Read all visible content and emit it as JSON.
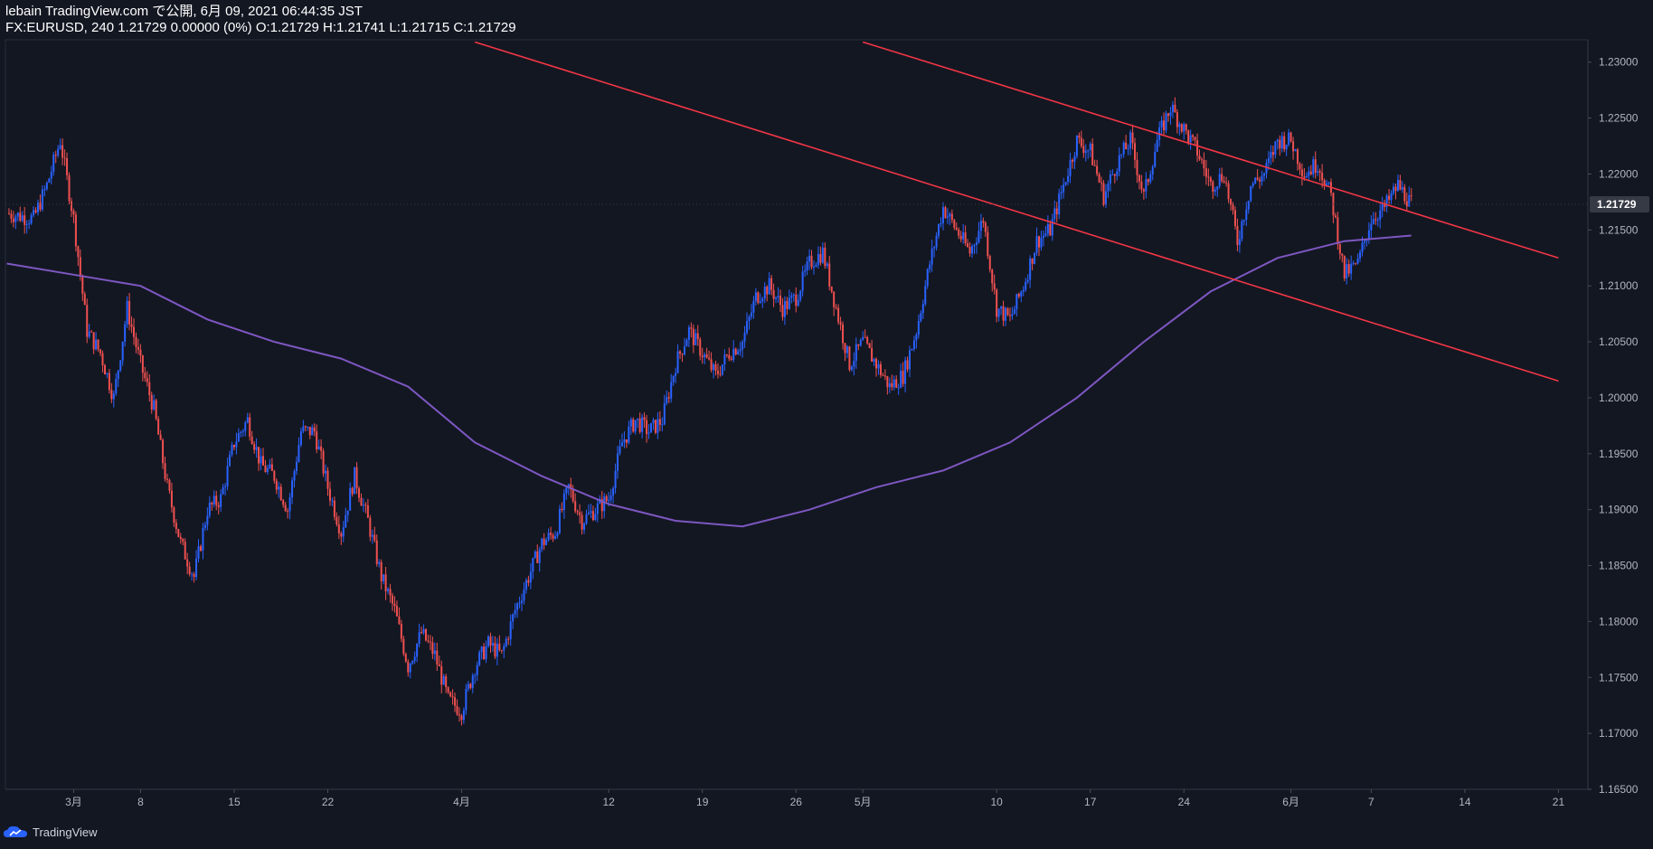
{
  "header": {
    "line1": "lebain TradingView.com で公開, 6月 09, 2021 06:44:35 JST",
    "line2": "FX:EURUSD, 240 1.21729 0.00000 (0%) O:1.21729 H:1.21741 L:1.21715 C:1.21729"
  },
  "footer": {
    "brand": "TradingView"
  },
  "colors": {
    "background": "#131722",
    "up": "#2962ff",
    "down": "#f05050",
    "ma": "#7e57c2",
    "trendline": "#f23645",
    "axis_text": "#b2b5be",
    "price_label_bg": "#363a45"
  },
  "chart_data": {
    "type": "candlestick",
    "symbol": "FX:EURUSD",
    "interval": "240",
    "ylim": [
      1.165,
      1.232
    ],
    "y_ticks": [
      "1.23000",
      "1.22500",
      "1.22000",
      "1.21500",
      "1.21000",
      "1.20500",
      "1.20000",
      "1.19500",
      "1.19000",
      "1.18500",
      "1.18000",
      "1.17500",
      "1.17000",
      "1.16500"
    ],
    "x_ticks": [
      {
        "label": "3月",
        "day": 0
      },
      {
        "label": "8",
        "day": 5
      },
      {
        "label": "15",
        "day": 12
      },
      {
        "label": "22",
        "day": 19
      },
      {
        "label": "4月",
        "day": 29
      },
      {
        "label": "12",
        "day": 40
      },
      {
        "label": "19",
        "day": 47
      },
      {
        "label": "26",
        "day": 54
      },
      {
        "label": "5月",
        "day": 59
      },
      {
        "label": "10",
        "day": 69
      },
      {
        "label": "17",
        "day": 76
      },
      {
        "label": "24",
        "day": 83
      },
      {
        "label": "6月",
        "day": 91
      },
      {
        "label": "7",
        "day": 97
      },
      {
        "label": "14",
        "day": 104
      },
      {
        "label": "21",
        "day": 111
      }
    ],
    "last_price": "1.21729",
    "price_path": [
      [
        -5,
        1.2165
      ],
      [
        -3,
        1.216
      ],
      [
        -2,
        1.219
      ],
      [
        -1,
        1.223
      ],
      [
        0,
        1.216
      ],
      [
        1,
        1.206
      ],
      [
        2,
        1.204
      ],
      [
        3,
        1.2
      ],
      [
        4,
        1.208
      ],
      [
        5,
        1.203
      ],
      [
        6,
        1.199
      ],
      [
        7,
        1.192
      ],
      [
        8,
        1.187
      ],
      [
        9,
        1.184
      ],
      [
        10,
        1.19
      ],
      [
        11,
        1.191
      ],
      [
        12,
        1.196
      ],
      [
        13,
        1.198
      ],
      [
        14,
        1.194
      ],
      [
        15,
        1.193
      ],
      [
        16,
        1.19
      ],
      [
        17,
        1.197
      ],
      [
        18,
        1.197
      ],
      [
        19,
        1.192
      ],
      [
        20,
        1.188
      ],
      [
        21,
        1.193
      ],
      [
        22,
        1.189
      ],
      [
        23,
        1.184
      ],
      [
        24,
        1.181
      ],
      [
        25,
        1.176
      ],
      [
        26,
        1.179
      ],
      [
        27,
        1.177
      ],
      [
        28,
        1.173
      ],
      [
        29,
        1.172
      ],
      [
        30,
        1.176
      ],
      [
        31,
        1.178
      ],
      [
        32,
        1.177
      ],
      [
        33,
        1.181
      ],
      [
        34,
        1.184
      ],
      [
        35,
        1.187
      ],
      [
        36,
        1.188
      ],
      [
        37,
        1.192
      ],
      [
        38,
        1.189
      ],
      [
        39,
        1.19
      ],
      [
        40,
        1.191
      ],
      [
        41,
        1.196
      ],
      [
        42,
        1.198
      ],
      [
        43,
        1.197
      ],
      [
        44,
        1.198
      ],
      [
        45,
        1.203
      ],
      [
        46,
        1.206
      ],
      [
        47,
        1.204
      ],
      [
        48,
        1.202
      ],
      [
        49,
        1.204
      ],
      [
        50,
        1.205
      ],
      [
        51,
        1.209
      ],
      [
        52,
        1.21
      ],
      [
        53,
        1.208
      ],
      [
        54,
        1.209
      ],
      [
        55,
        1.212
      ],
      [
        56,
        1.213
      ],
      [
        57,
        1.208
      ],
      [
        58,
        1.203
      ],
      [
        59,
        1.205
      ],
      [
        60,
        1.203
      ],
      [
        61,
        1.201
      ],
      [
        62,
        1.202
      ],
      [
        63,
        1.206
      ],
      [
        64,
        1.212
      ],
      [
        65,
        1.217
      ],
      [
        66,
        1.215
      ],
      [
        67,
        1.213
      ],
      [
        68,
        1.216
      ],
      [
        69,
        1.208
      ],
      [
        70,
        1.207
      ],
      [
        71,
        1.21
      ],
      [
        72,
        1.214
      ],
      [
        73,
        1.215
      ],
      [
        74,
        1.219
      ],
      [
        75,
        1.223
      ],
      [
        76,
        1.222
      ],
      [
        77,
        1.218
      ],
      [
        78,
        1.221
      ],
      [
        79,
        1.223
      ],
      [
        80,
        1.218
      ],
      [
        81,
        1.223
      ],
      [
        82,
        1.226
      ],
      [
        83,
        1.224
      ],
      [
        84,
        1.222
      ],
      [
        85,
        1.219
      ],
      [
        86,
        1.22
      ],
      [
        87,
        1.214
      ],
      [
        88,
        1.219
      ],
      [
        89,
        1.22
      ],
      [
        90,
        1.223
      ],
      [
        91,
        1.223
      ],
      [
        92,
        1.22
      ],
      [
        93,
        1.221
      ],
      [
        94,
        1.218
      ],
      [
        95,
        1.211
      ],
      [
        96,
        1.212
      ],
      [
        97,
        1.216
      ],
      [
        98,
        1.217
      ],
      [
        99,
        1.219
      ],
      [
        100,
        1.2173
      ]
    ],
    "moving_average": [
      [
        -5,
        1.212
      ],
      [
        0,
        1.211
      ],
      [
        5,
        1.21
      ],
      [
        10,
        1.207
      ],
      [
        15,
        1.205
      ],
      [
        20,
        1.2035
      ],
      [
        25,
        1.201
      ],
      [
        30,
        1.196
      ],
      [
        35,
        1.193
      ],
      [
        40,
        1.1905
      ],
      [
        45,
        1.189
      ],
      [
        50,
        1.1885
      ],
      [
        55,
        1.19
      ],
      [
        60,
        1.192
      ],
      [
        65,
        1.1935
      ],
      [
        70,
        1.196
      ],
      [
        75,
        1.2
      ],
      [
        80,
        1.205
      ],
      [
        85,
        1.2095
      ],
      [
        90,
        1.2125
      ],
      [
        95,
        1.214
      ],
      [
        100,
        1.2145
      ]
    ],
    "trendlines": [
      {
        "name": "channel-upper",
        "from": [
          59,
          1.2318
        ],
        "to": [
          111,
          1.2125
        ]
      },
      {
        "name": "channel-lower",
        "from": [
          30,
          1.2318
        ],
        "to": [
          111,
          1.2015
        ]
      }
    ]
  }
}
